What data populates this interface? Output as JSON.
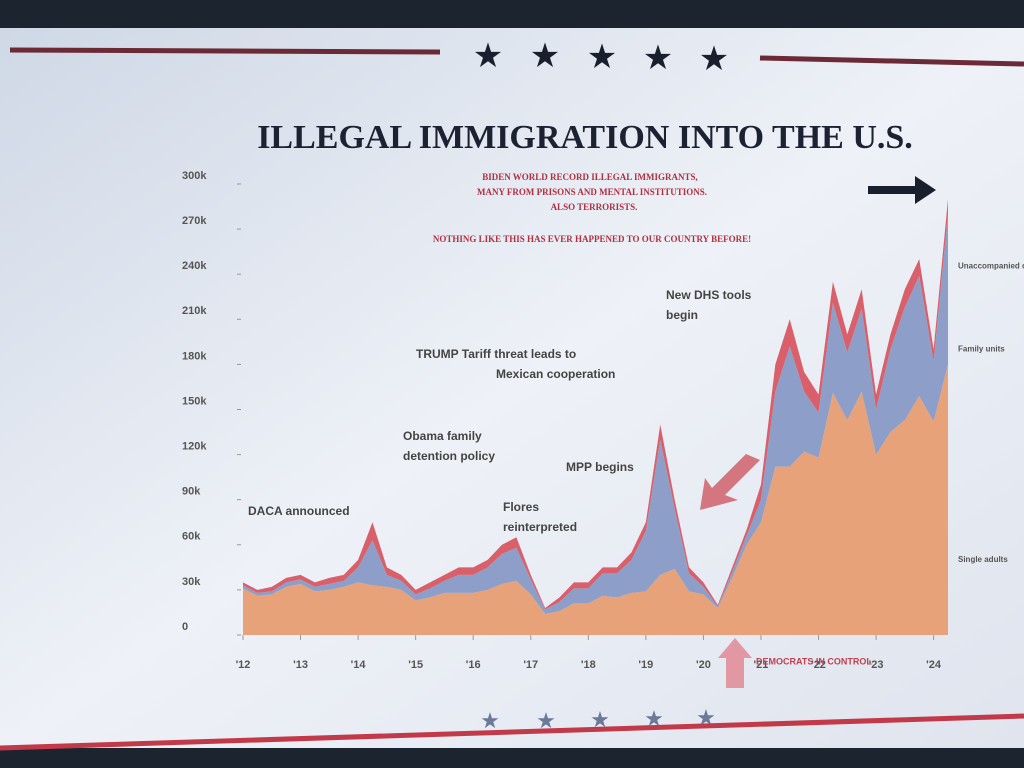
{
  "chart_data": {
    "type": "stacked-area",
    "title": "ILLEGAL IMMIGRATION INTO THE U.S.",
    "subtitle": [
      "BIDEN WORLD RECORD ILLEGAL IMMIGRANTS,",
      "MANY FROM PRISONS AND MENTAL INSTITUTIONS.",
      "ALSO TERRORISTS."
    ],
    "tagline": "NOTHING LIKE THIS HAS EVER HAPPENED TO OUR COUNTRY BEFORE!",
    "x": [
      2012,
      2012.25,
      2012.5,
      2012.75,
      2013,
      2013.25,
      2013.5,
      2013.75,
      2014,
      2014.25,
      2014.5,
      2014.75,
      2015,
      2015.25,
      2015.5,
      2015.75,
      2016,
      2016.25,
      2016.5,
      2016.75,
      2017,
      2017.25,
      2017.5,
      2017.75,
      2018,
      2018.25,
      2018.5,
      2018.75,
      2019,
      2019.25,
      2019.5,
      2019.75,
      2020,
      2020.25,
      2020.5,
      2020.75,
      2021,
      2021.25,
      2021.5,
      2021.75,
      2022,
      2022.25,
      2022.5,
      2022.75,
      2023,
      2023.25,
      2023.5,
      2023.75,
      2024,
      2024.25
    ],
    "series": [
      {
        "name": "Single adults",
        "color": "#e8a27a",
        "values": [
          31000,
          26000,
          27000,
          32000,
          34000,
          29000,
          30000,
          32000,
          35000,
          33000,
          32000,
          30000,
          23000,
          25000,
          28000,
          28000,
          28000,
          30000,
          34000,
          36000,
          27000,
          14000,
          16000,
          21000,
          21000,
          26000,
          25000,
          28000,
          29000,
          40000,
          44000,
          29000,
          27000,
          18000,
          38000,
          60000,
          75000,
          112000,
          112000,
          122000,
          118000,
          161000,
          143000,
          162000,
          120000,
          135000,
          143000,
          159000,
          142000,
          180000
        ]
      },
      {
        "name": "Family units",
        "color": "#8d9fc9",
        "values": [
          2000,
          2000,
          2000,
          3000,
          3000,
          3000,
          4000,
          4000,
          10000,
          30000,
          8000,
          6000,
          4000,
          6000,
          8000,
          12000,
          12000,
          15000,
          20000,
          22000,
          10000,
          3000,
          6000,
          10000,
          10000,
          15000,
          16000,
          22000,
          40000,
          90000,
          40000,
          12000,
          5000,
          1000,
          4000,
          6000,
          15000,
          50000,
          80000,
          40000,
          30000,
          60000,
          45000,
          55000,
          30000,
          55000,
          75000,
          80000,
          40000,
          100000
        ]
      },
      {
        "name": "Unaccompanied children",
        "color": "#d9606a",
        "values": [
          2000,
          2000,
          3000,
          3000,
          3000,
          3000,
          4000,
          4000,
          5000,
          12000,
          5000,
          4000,
          3000,
          4000,
          4000,
          5000,
          5000,
          5000,
          6000,
          7000,
          3000,
          1000,
          3000,
          4000,
          4000,
          4000,
          4000,
          5000,
          6000,
          10000,
          6000,
          4000,
          3000,
          1000,
          3000,
          4000,
          10000,
          18000,
          18000,
          13000,
          12000,
          14000,
          12000,
          13000,
          10000,
          10000,
          12000,
          11000,
          8000,
          10000
        ]
      }
    ],
    "xlim": [
      2012,
      2024.25
    ],
    "xticks": [
      {
        "value": 2012,
        "label": "'12"
      },
      {
        "value": 2013,
        "label": "'13"
      },
      {
        "value": 2014,
        "label": "'14"
      },
      {
        "value": 2015,
        "label": "'15"
      },
      {
        "value": 2016,
        "label": "'16"
      },
      {
        "value": 2017,
        "label": "'17"
      },
      {
        "value": 2018,
        "label": "'18"
      },
      {
        "value": 2019,
        "label": "'19"
      },
      {
        "value": 2020,
        "label": "'20"
      },
      {
        "value": 2021,
        "label": "'21"
      },
      {
        "value": 2022,
        "label": "'22"
      },
      {
        "value": 2023,
        "label": "'23"
      },
      {
        "value": 2024,
        "label": "'24"
      }
    ],
    "ylim": [
      0,
      300000
    ],
    "yticks": [
      0,
      {
        "value": 30000,
        "label": "30k"
      },
      {
        "value": 60000,
        "label": "60k"
      },
      {
        "value": 90000,
        "label": "90k"
      },
      {
        "value": 120000,
        "label": "120k"
      },
      {
        "value": 150000,
        "label": "150k"
      },
      {
        "value": 180000,
        "label": "180k"
      },
      {
        "value": 210000,
        "label": "210k"
      },
      {
        "value": 240000,
        "label": "240k"
      },
      {
        "value": 270000,
        "label": "270k"
      },
      {
        "value": 300000,
        "label": "300k"
      }
    ],
    "grid": false,
    "annotations": [
      "DACA announced",
      "Obama family detention policy",
      "Flores reinterpreted",
      "TRUMP Tariff threat leads to Mexican cooperation",
      "MPP begins",
      "New DHS tools begin"
    ],
    "footer_label": "DEMOCRATS IN CONTROL"
  }
}
